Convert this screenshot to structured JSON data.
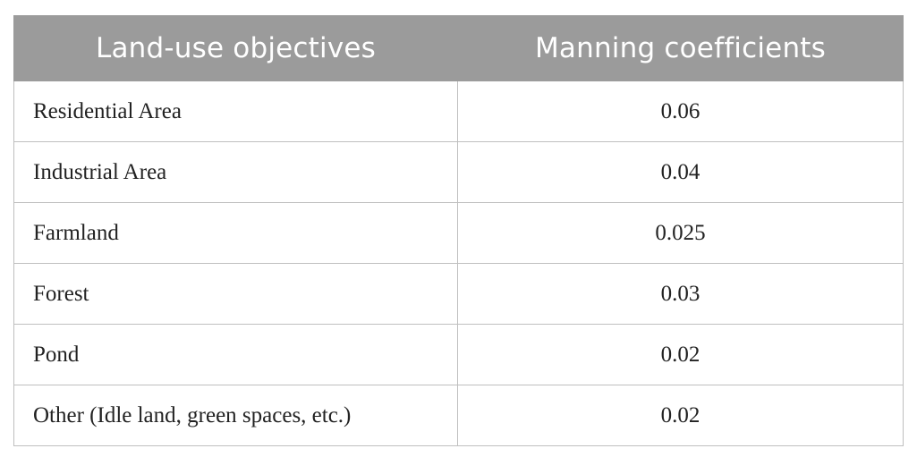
{
  "table": {
    "headers": [
      "Land-use objectives",
      "Manning coefficients"
    ],
    "rows": [
      {
        "land_use": "Residential Area",
        "coefficient": "0.06"
      },
      {
        "land_use": "Industrial Area",
        "coefficient": "0.04"
      },
      {
        "land_use": "Farmland",
        "coefficient": "0.025"
      },
      {
        "land_use": "Forest",
        "coefficient": "0.03"
      },
      {
        "land_use": "Pond",
        "coefficient": "0.02"
      },
      {
        "land_use": "Other (Idle land, green spaces, etc.)",
        "coefficient": "0.02"
      }
    ],
    "colors": {
      "header_bg": "#9b9b9b",
      "header_text": "#ffffff",
      "border": "#bfbfbf"
    }
  }
}
